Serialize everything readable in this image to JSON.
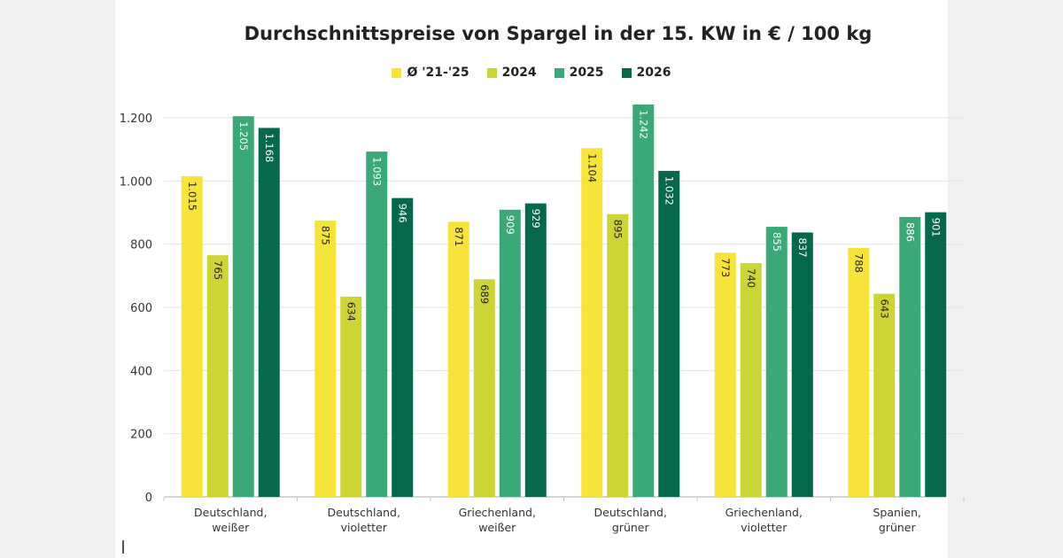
{
  "chart_data": {
    "type": "bar",
    "title": "Durchschnittspreise von Spargel in der 15. KW in € / 100 kg",
    "categories": [
      [
        "Deutschland,",
        "weißer"
      ],
      [
        "Deutschland,",
        "violetter"
      ],
      [
        "Griechenland,",
        "weißer"
      ],
      [
        "Deutschland,",
        "grüner"
      ],
      [
        "Griechenland,",
        "violetter"
      ],
      [
        "Spanien,",
        "grüner"
      ]
    ],
    "series": [
      {
        "name": "Ø '21-'25",
        "color": "#f7e43a",
        "values": [
          1015,
          875,
          871,
          1104,
          773,
          788
        ]
      },
      {
        "name": "2024",
        "color": "#cdd436",
        "values": [
          765,
          634,
          689,
          895,
          740,
          643
        ]
      },
      {
        "name": "2025",
        "color": "#3aa877",
        "values": [
          1205,
          1093,
          909,
          1242,
          855,
          886
        ]
      },
      {
        "name": "2026",
        "color": "#05684a",
        "values": [
          1168,
          946,
          929,
          1032,
          837,
          901
        ]
      }
    ],
    "ylim": [
      0,
      1200
    ],
    "yticks": [
      0,
      200,
      400,
      600,
      800,
      1000,
      1200
    ],
    "ytick_labels": [
      "0",
      "200",
      "400",
      "600",
      "800",
      "1.000",
      "1.200"
    ],
    "grid": true,
    "legend_position": "top-center",
    "xlabel": "",
    "ylabel": ""
  }
}
